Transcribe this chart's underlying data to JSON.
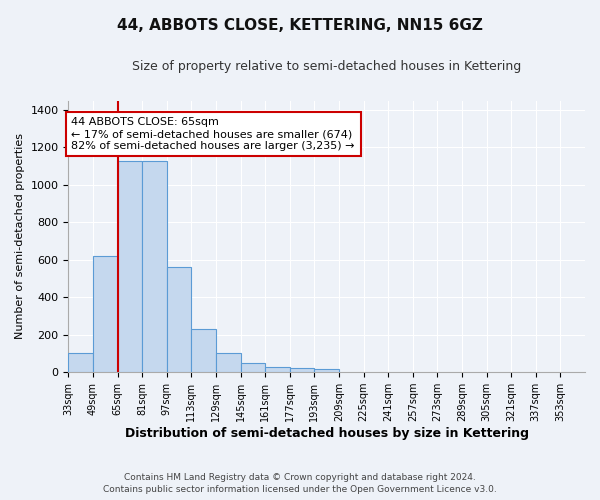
{
  "title": "44, ABBOTS CLOSE, KETTERING, NN15 6GZ",
  "subtitle": "Size of property relative to semi-detached houses in Kettering",
  "xlabel": "Distribution of semi-detached houses by size in Kettering",
  "ylabel": "Number of semi-detached properties",
  "bin_labels": [
    "33sqm",
    "49sqm",
    "65sqm",
    "81sqm",
    "97sqm",
    "113sqm",
    "129sqm",
    "145sqm",
    "161sqm",
    "177sqm",
    "193sqm",
    "209sqm",
    "225sqm",
    "241sqm",
    "257sqm",
    "273sqm",
    "289sqm",
    "305sqm",
    "321sqm",
    "337sqm",
    "353sqm"
  ],
  "bin_edges": [
    33,
    49,
    65,
    81,
    97,
    113,
    129,
    145,
    161,
    177,
    193,
    209,
    225,
    241,
    257,
    273,
    289,
    305,
    321,
    337,
    353,
    369
  ],
  "bar_values": [
    100,
    620,
    1130,
    1130,
    560,
    230,
    100,
    50,
    30,
    20,
    15,
    0,
    0,
    0,
    0,
    0,
    0,
    0,
    0,
    0,
    0
  ],
  "bar_color": "#c5d8ee",
  "bar_edge_color": "#5b9bd5",
  "property_value": 65,
  "vline_color": "#cc0000",
  "annotation_title": "44 ABBOTS CLOSE: 65sqm",
  "annotation_line1": "← 17% of semi-detached houses are smaller (674)",
  "annotation_line2": "82% of semi-detached houses are larger (3,235) →",
  "annotation_box_color": "#ffffff",
  "annotation_box_edge_color": "#cc0000",
  "ylim": [
    0,
    1450
  ],
  "yticks": [
    0,
    200,
    400,
    600,
    800,
    1000,
    1200,
    1400
  ],
  "bg_color": "#eef2f8",
  "grid_color": "#ffffff",
  "footer1": "Contains HM Land Registry data © Crown copyright and database right 2024.",
  "footer2": "Contains public sector information licensed under the Open Government Licence v3.0."
}
